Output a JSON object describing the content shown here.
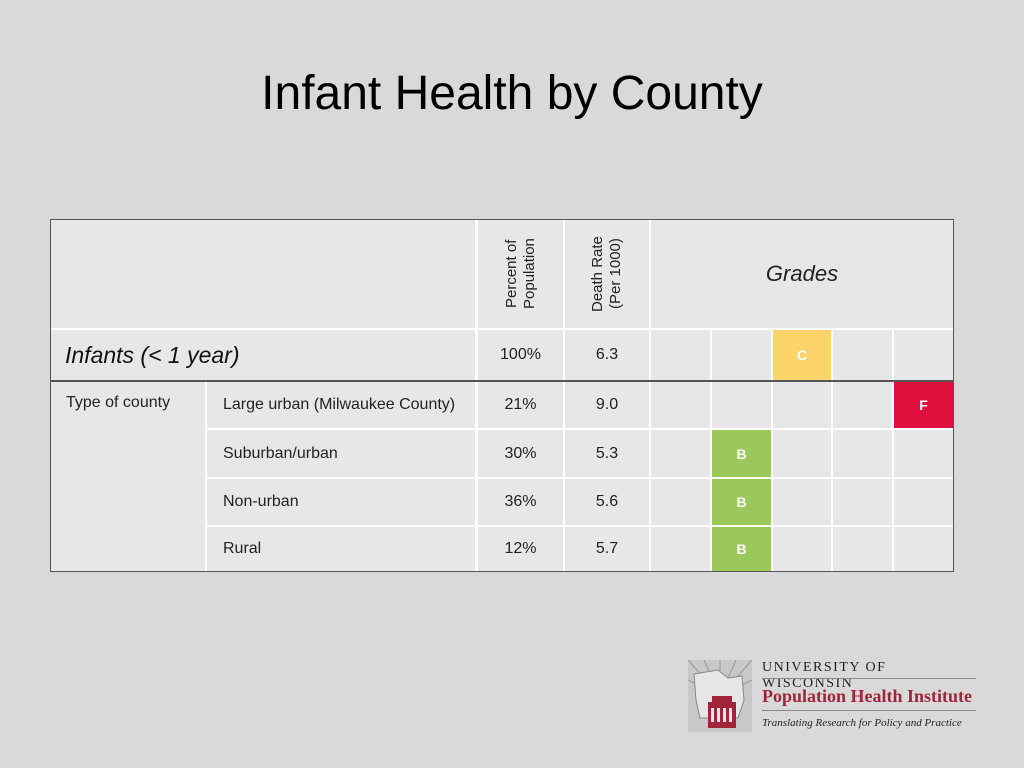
{
  "slide": {
    "title": "Infant Health by County"
  },
  "table": {
    "col_headers": {
      "percent": "Percent of Population",
      "death_rate": "Death Rate (Per 1000)",
      "grades": "Grades"
    },
    "summary": {
      "label": "Infants (< 1 year)",
      "percent": "100%",
      "rate": "6.3",
      "grade": "C"
    },
    "group_label": "Type of county",
    "rows": [
      {
        "label": "Large urban (Milwaukee County)",
        "percent": "21%",
        "rate": "9.0",
        "grade": "F"
      },
      {
        "label": "Suburban/urban",
        "percent": "30%",
        "rate": "5.3",
        "grade": "B"
      },
      {
        "label": "Non-urban",
        "percent": "36%",
        "rate": "5.6",
        "grade": "B"
      },
      {
        "label": "Rural",
        "percent": "12%",
        "rate": "5.7",
        "grade": "B"
      }
    ],
    "grade_colors": {
      "B": "#9bc85a",
      "C": "#fad468",
      "F": "#e0103c"
    }
  },
  "logo": {
    "line1": "UNIVERSITY OF WISCONSIN",
    "line2": "Population Health Institute",
    "line3": "Translating Research for Policy and Practice"
  }
}
